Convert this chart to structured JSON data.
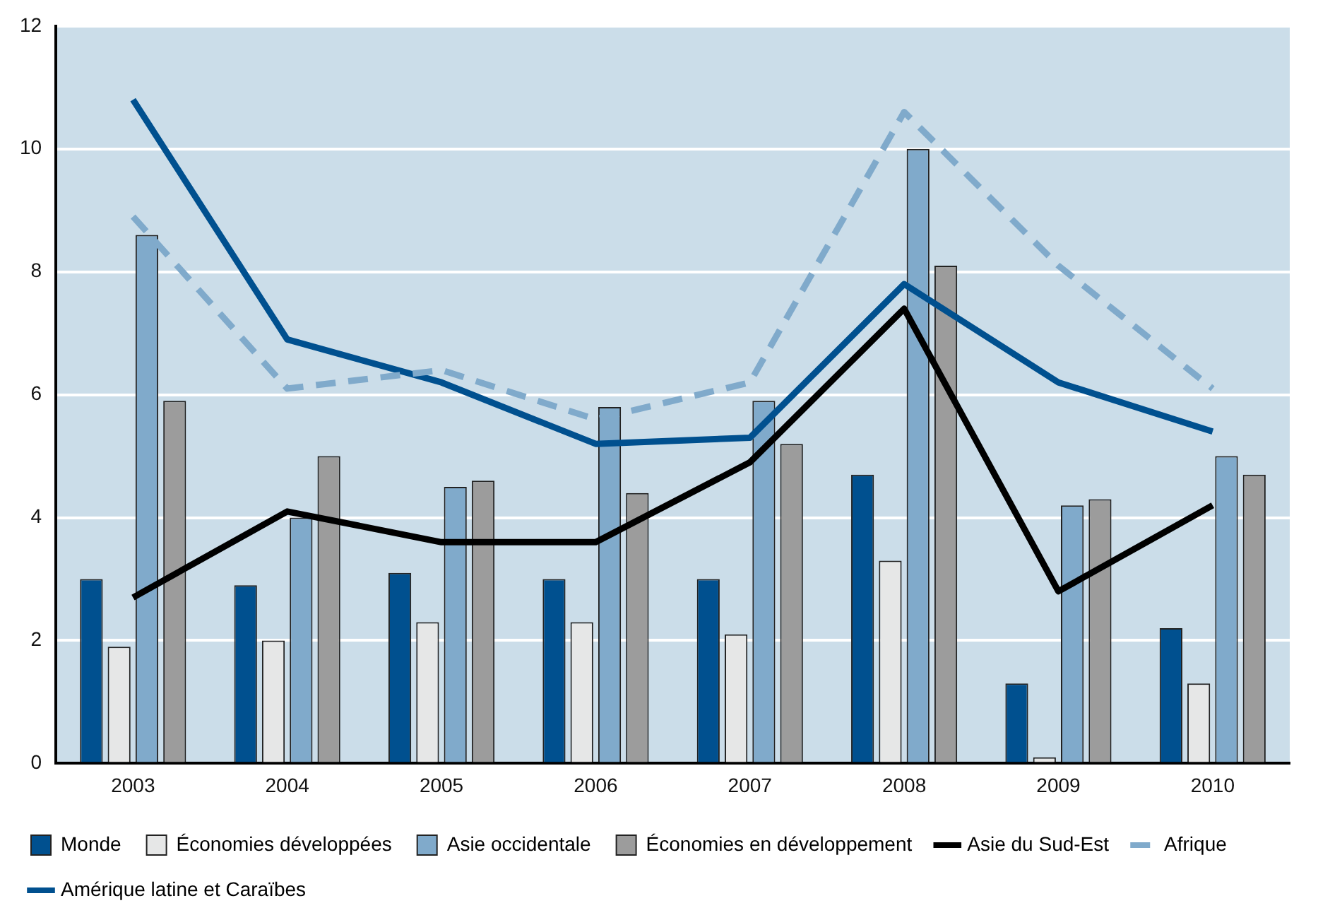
{
  "chart_data": {
    "type": "bar",
    "categories": [
      "2003",
      "2004",
      "2005",
      "2006",
      "2007",
      "2008",
      "2009",
      "2010"
    ],
    "ylim": [
      0,
      12
    ],
    "yticks": [
      0,
      2,
      4,
      6,
      8,
      10,
      12
    ],
    "grid": "y",
    "legend": "bottom",
    "marker": "none",
    "series": [
      {
        "name": "Monde",
        "color": "#00508f",
        "values": [
          3.0,
          2.9,
          3.1,
          3.0,
          3.0,
          4.7,
          1.3,
          2.2
        ]
      },
      {
        "name": "Économies développées",
        "color": "#e6e7e7",
        "values": [
          1.9,
          2.0,
          2.3,
          2.3,
          2.1,
          3.3,
          0.1,
          1.3
        ]
      },
      {
        "name": "Asie occidentale",
        "color": "#80aacb",
        "values": [
          8.6,
          4.0,
          4.5,
          5.8,
          5.9,
          10.0,
          4.2,
          5.0
        ]
      },
      {
        "name": "Économies en développement",
        "color": "#9c9c9c",
        "values": [
          5.9,
          5.0,
          4.6,
          4.4,
          5.2,
          8.1,
          4.3,
          4.7
        ]
      },
      {
        "name": "Asie du Sud-Est",
        "type": "line",
        "color": "#000000",
        "line_style": "solid",
        "values": [
          2.7,
          4.1,
          3.6,
          3.6,
          4.9,
          7.4,
          2.8,
          4.2
        ]
      },
      {
        "name": "Afrique",
        "type": "line",
        "color": "#80aacb",
        "line_style": "dashed",
        "values": [
          8.9,
          6.1,
          6.4,
          5.6,
          6.2,
          10.6,
          8.1,
          6.1
        ]
      },
      {
        "name": "Amérique latine et Caraïbes",
        "type": "line",
        "color": "#00508f",
        "line_style": "solid",
        "values": [
          10.8,
          6.9,
          6.2,
          5.2,
          5.3,
          7.8,
          6.2,
          5.4
        ]
      }
    ]
  }
}
